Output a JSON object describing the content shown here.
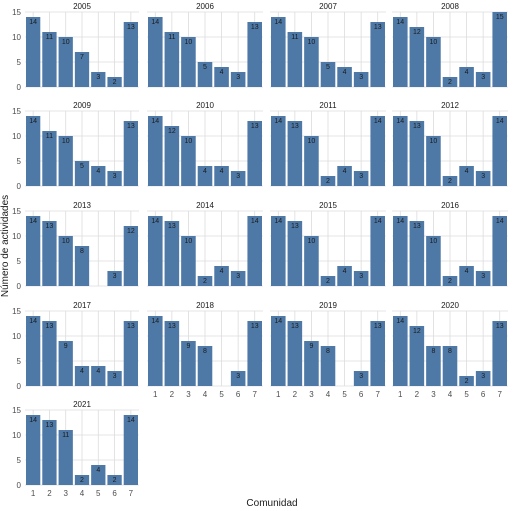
{
  "chart_data": {
    "type": "bar",
    "facet_by": "year",
    "categories": [
      "1",
      "2",
      "3",
      "4",
      "5",
      "6",
      "7"
    ],
    "xlabel": "Comunidad",
    "ylabel": "Número de actividades",
    "ylim": [
      0,
      15
    ],
    "y_ticks": [
      "0",
      "5",
      "10",
      "15"
    ],
    "grid": true,
    "bar_color": "#4e79a7",
    "panels": [
      {
        "year": "2005",
        "values": [
          14,
          11,
          10,
          7,
          3,
          2,
          13
        ]
      },
      {
        "year": "2006",
        "values": [
          14,
          11,
          10,
          5,
          4,
          3,
          13
        ]
      },
      {
        "year": "2007",
        "values": [
          14,
          11,
          10,
          5,
          4,
          3,
          13
        ]
      },
      {
        "year": "2008",
        "values": [
          14,
          12,
          10,
          2,
          4,
          3,
          15
        ]
      },
      {
        "year": "2009",
        "values": [
          14,
          11,
          10,
          5,
          4,
          3,
          13
        ]
      },
      {
        "year": "2010",
        "values": [
          14,
          12,
          10,
          4,
          4,
          3,
          13
        ]
      },
      {
        "year": "2011",
        "values": [
          14,
          13,
          10,
          2,
          4,
          3,
          14
        ]
      },
      {
        "year": "2012",
        "values": [
          14,
          13,
          10,
          2,
          4,
          3,
          14
        ]
      },
      {
        "year": "2013",
        "values": [
          14,
          13,
          10,
          8,
          null,
          3,
          12
        ]
      },
      {
        "year": "2014",
        "values": [
          14,
          13,
          10,
          2,
          4,
          3,
          14
        ]
      },
      {
        "year": "2015",
        "values": [
          14,
          13,
          10,
          2,
          4,
          3,
          14
        ]
      },
      {
        "year": "2016",
        "values": [
          14,
          13,
          10,
          2,
          4,
          3,
          14
        ]
      },
      {
        "year": "2017",
        "values": [
          14,
          13,
          9,
          4,
          4,
          3,
          13
        ]
      },
      {
        "year": "2018",
        "values": [
          14,
          13,
          9,
          8,
          null,
          3,
          13
        ]
      },
      {
        "year": "2019",
        "values": [
          14,
          13,
          9,
          8,
          null,
          3,
          13
        ]
      },
      {
        "year": "2020",
        "values": [
          14,
          12,
          8,
          8,
          2,
          3,
          13
        ]
      },
      {
        "year": "2021",
        "values": [
          14,
          13,
          11,
          2,
          4,
          2,
          14
        ]
      }
    ]
  }
}
